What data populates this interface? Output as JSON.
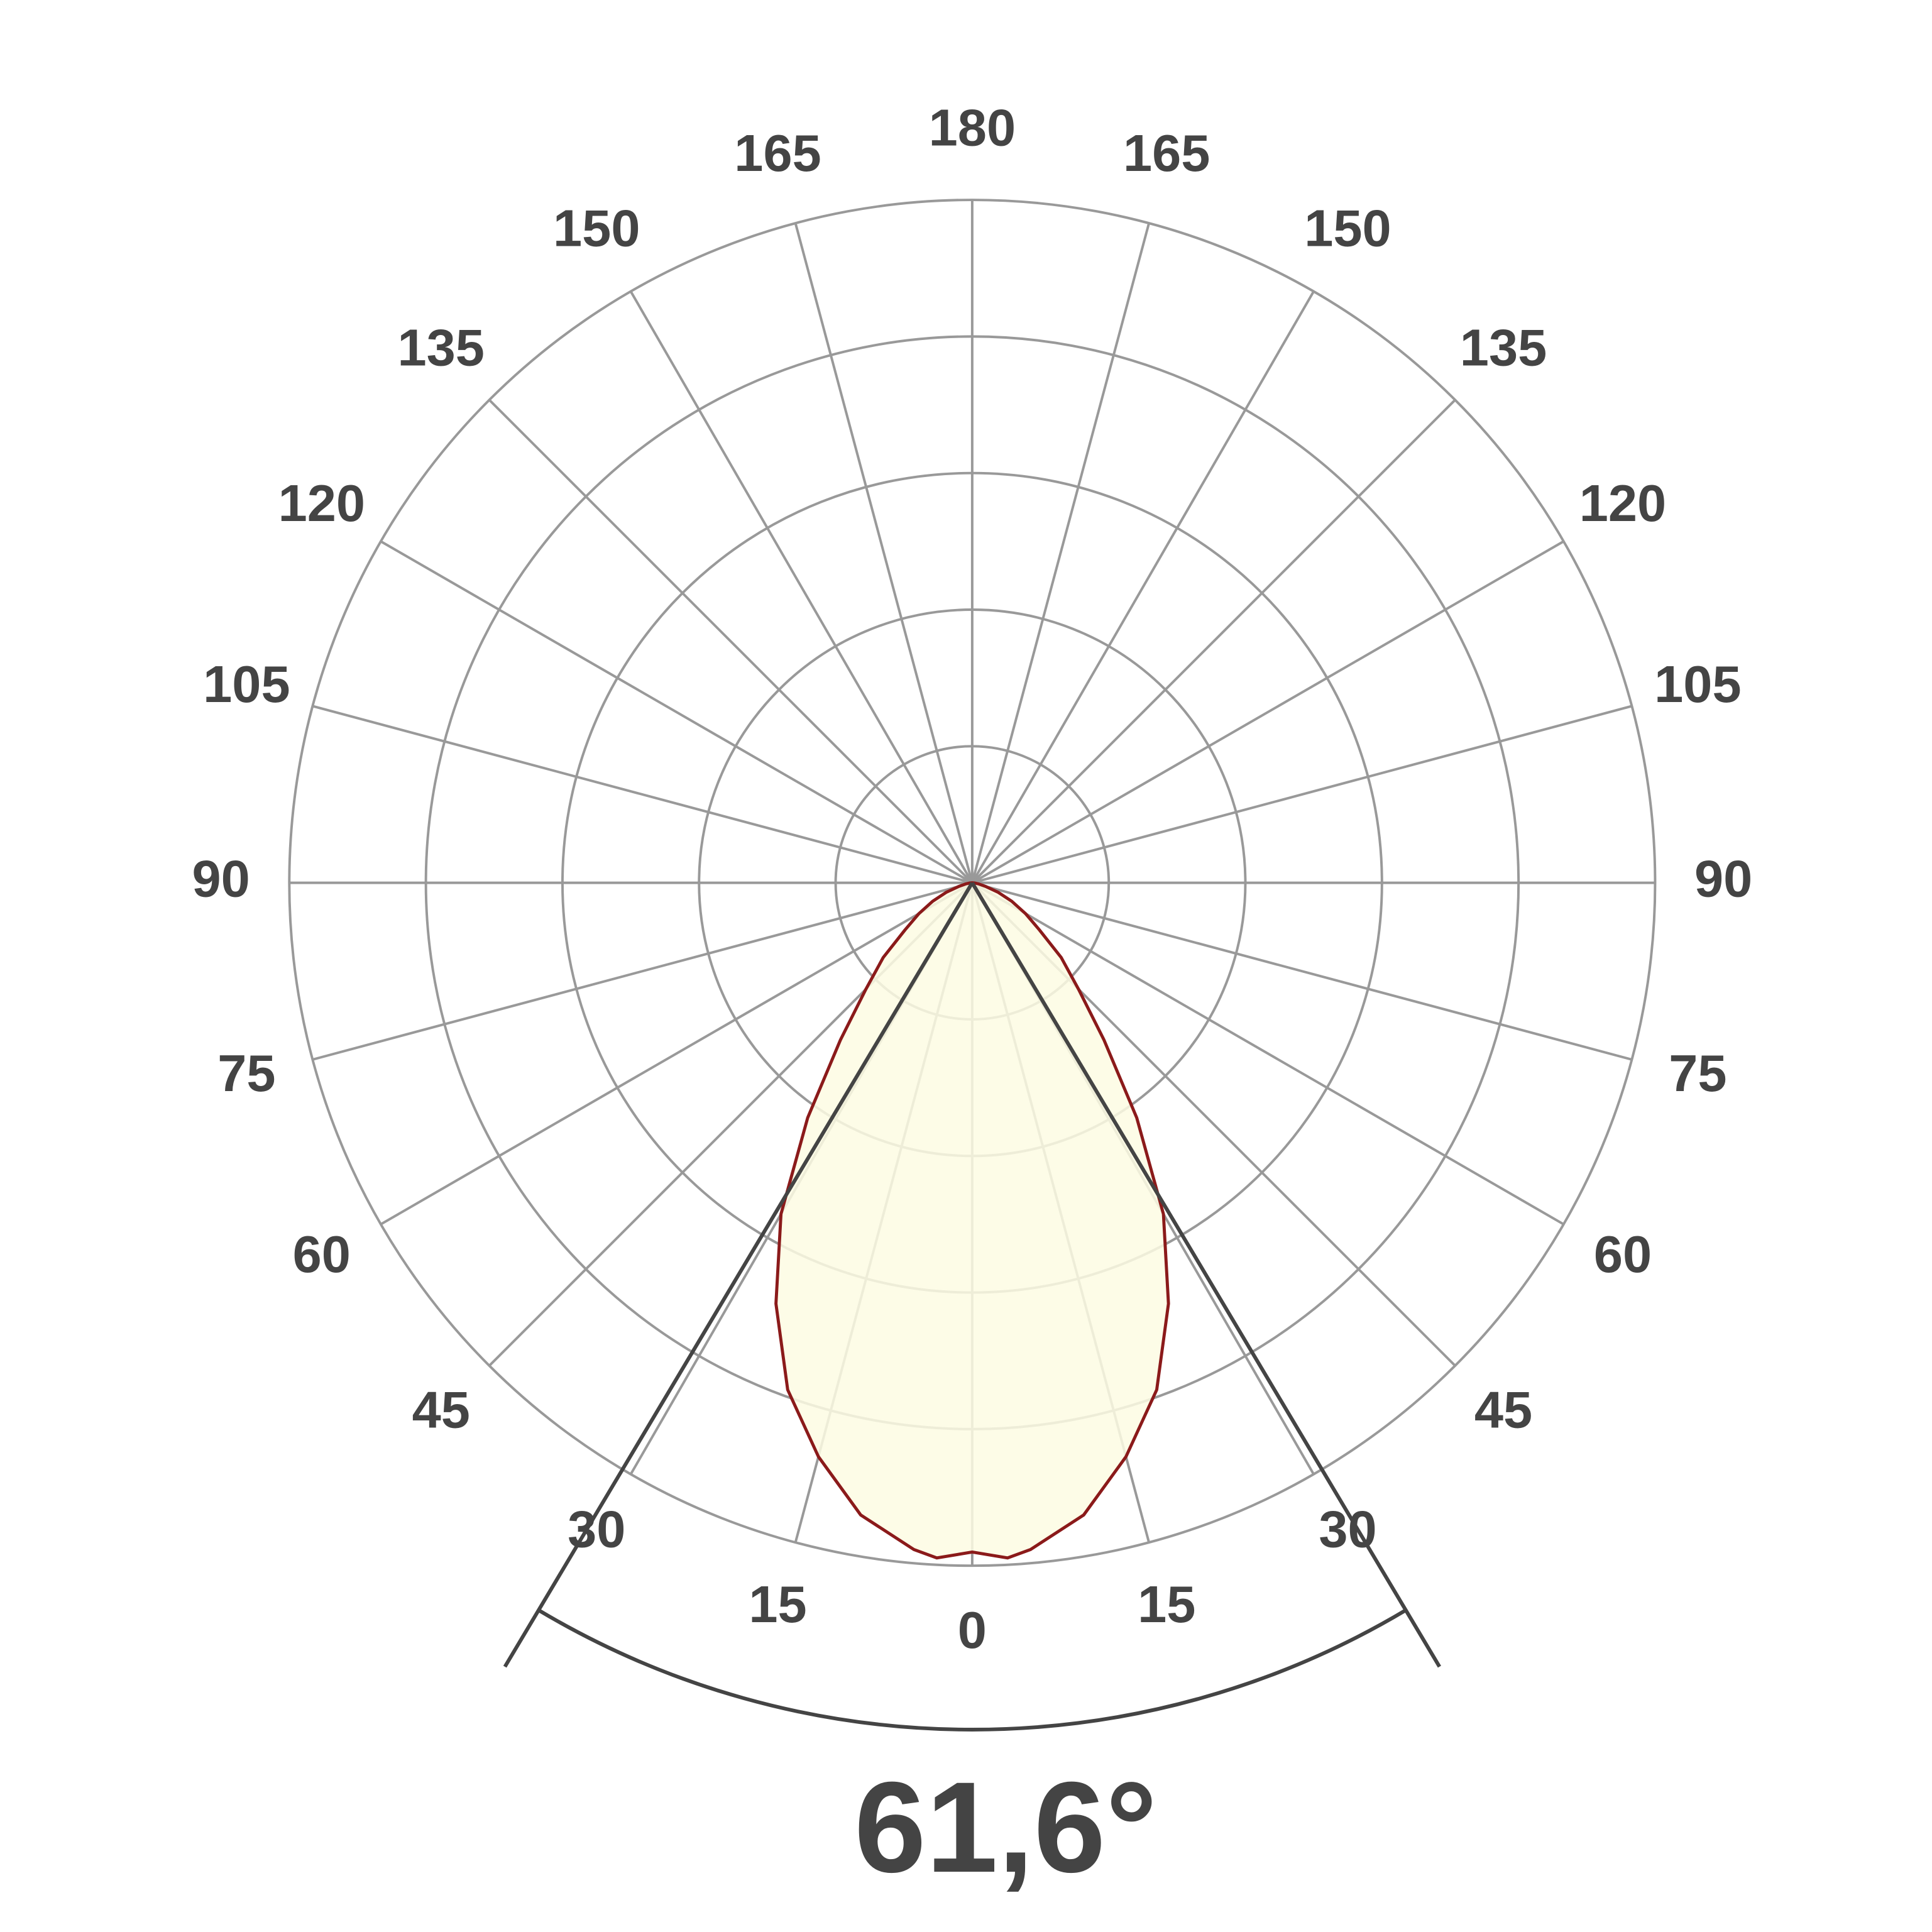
{
  "chart_data": {
    "type": "polar",
    "theta": [
      -90,
      -85,
      -80,
      -75,
      -70,
      -65,
      -60,
      -55,
      -50,
      -45,
      -40,
      -35,
      -30,
      -25,
      -20,
      -15,
      -10,
      -5,
      -3,
      0,
      3,
      5,
      10,
      15,
      20,
      25,
      30,
      35,
      40,
      45,
      50,
      55,
      60,
      65,
      70,
      75,
      80,
      85,
      90
    ],
    "values": [
      0,
      0.02,
      0.05,
      0.1,
      0.2,
      0.32,
      0.45,
      0.6,
      0.85,
      1.1,
      1.5,
      2.1,
      2.8,
      3.4,
      3.95,
      4.35,
      4.7,
      4.9,
      4.95,
      4.9,
      4.95,
      4.9,
      4.7,
      4.35,
      3.95,
      3.4,
      2.8,
      2.1,
      1.5,
      1.1,
      0.85,
      0.6,
      0.45,
      0.32,
      0.2,
      0.1,
      0.05,
      0.02,
      0
    ],
    "color": "#8b1a1a",
    "fill": "#fdfbe3",
    "rlim": [
      0,
      5
    ],
    "rticks": [
      1,
      2,
      3,
      4,
      5
    ],
    "thetaticks": [
      0,
      15,
      30,
      45,
      60,
      75,
      90,
      105,
      120,
      135,
      150,
      165,
      180,
      {
        "value": -15,
        "label": "15"
      },
      {
        "value": -30,
        "label": "30"
      },
      {
        "value": -45,
        "label": "45"
      },
      {
        "value": -60,
        "label": "60"
      },
      {
        "value": -75,
        "label": "75"
      },
      {
        "value": -90,
        "label": "90"
      },
      {
        "value": -105,
        "label": "105"
      },
      {
        "value": -120,
        "label": "120"
      },
      {
        "value": -135,
        "label": "135"
      },
      {
        "value": -150,
        "label": "150"
      },
      {
        "value": -165,
        "label": "165"
      }
    ],
    "grid": true,
    "beam_angle": {
      "value": 61.6,
      "label": "61,6°"
    }
  }
}
